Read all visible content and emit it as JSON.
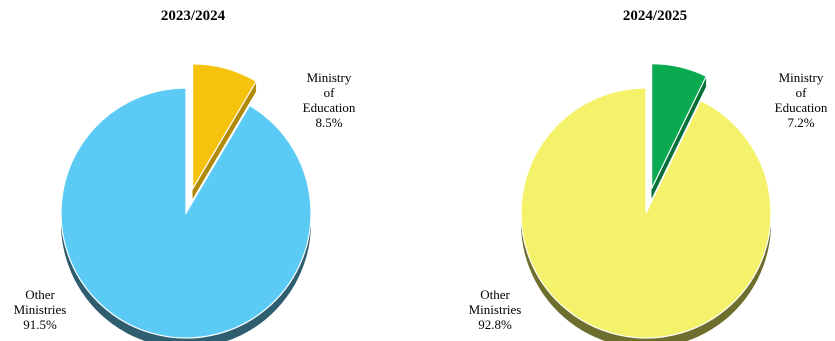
{
  "chart_data": [
    {
      "type": "pie",
      "title": "2023/2024",
      "slices": [
        {
          "label_lines": [
            "Ministry",
            "of",
            "Education"
          ],
          "pct_text": "8.5%",
          "value": 8.5,
          "color": "#F5C30E",
          "dark": "#B08A08",
          "exploded": true
        },
        {
          "label_lines": [
            "Other",
            "Ministries"
          ],
          "pct_text": "91.5%",
          "value": 91.5,
          "color": "#5BCBF5",
          "dark": "#2F5E70",
          "exploded": false
        }
      ]
    },
    {
      "type": "pie",
      "title": "2024/2025",
      "slices": [
        {
          "label_lines": [
            "Ministry",
            "of",
            "Education"
          ],
          "pct_text": "7.2%",
          "value": 7.2,
          "color": "#0AAB50",
          "dark": "#06703A",
          "exploded": true
        },
        {
          "label_lines": [
            "Other",
            "Ministries"
          ],
          "pct_text": "92.8%",
          "value": 92.8,
          "color": "#F3F26A",
          "dark": "#6E6F2E",
          "exploded": false
        }
      ]
    }
  ]
}
